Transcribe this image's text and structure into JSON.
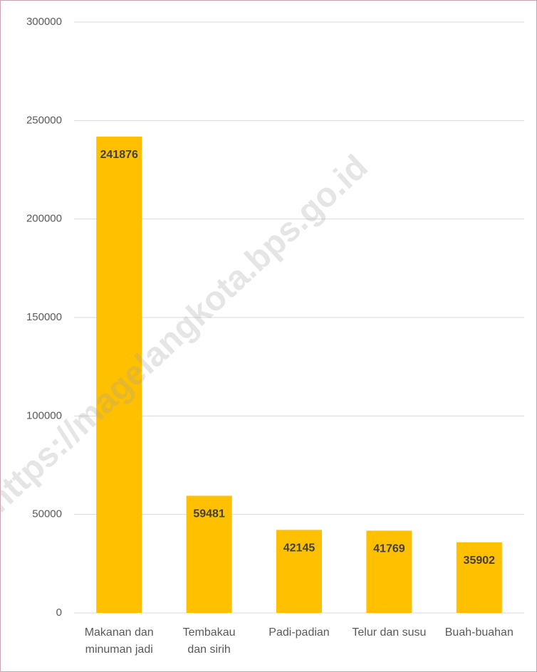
{
  "chart_data": {
    "type": "bar",
    "categories": [
      "Makanan dan minuman jadi",
      "Tembakau dan sirih",
      "Padi-padian",
      "Telur dan susu",
      "Buah-buahan"
    ],
    "values": [
      241876,
      59481,
      42145,
      41769,
      35902
    ],
    "color": "#ffc000",
    "ylim": [
      0,
      300000
    ],
    "yticks": [
      0,
      50000,
      100000,
      150000,
      200000,
      250000,
      300000
    ],
    "grid": true,
    "watermark": "https://magelangkota.bps.go.id"
  }
}
